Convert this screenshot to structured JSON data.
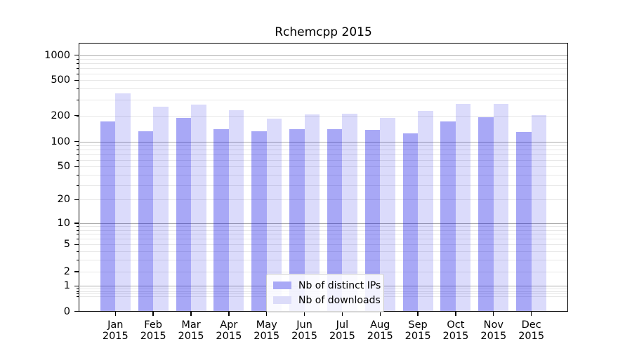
{
  "title": "Rchemcpp 2015",
  "legend": {
    "items": [
      {
        "label": "Nb of distinct IPs"
      },
      {
        "label": "Nb of downloads"
      }
    ]
  },
  "y_axis": {
    "tick_values": [
      0,
      1,
      2,
      5,
      10,
      20,
      50,
      100,
      200,
      500,
      1000
    ],
    "tick_labels": [
      "0",
      "1",
      "2",
      "5",
      "10",
      "20",
      "50",
      "100",
      "200",
      "500",
      "1000"
    ]
  },
  "x_axis": {
    "months": [
      "Jan",
      "Feb",
      "Mar",
      "Apr",
      "May",
      "Jun",
      "Jul",
      "Aug",
      "Sep",
      "Oct",
      "Nov",
      "Dec"
    ],
    "year": "2015"
  },
  "colors": {
    "bar_ips_fill": "rgba(0,0,230,0.34)",
    "bar_downloads_fill": "rgba(0,0,230,0.14)",
    "legend_ips_swatch": "#a9a9f6",
    "legend_downloads_swatch": "#dcdcf9",
    "grid_major": "#ababab",
    "grid_minor": "#e7e7e7",
    "spine": "#000000"
  },
  "chart_data": {
    "type": "bar",
    "title": "Rchemcpp 2015",
    "categories": [
      "Jan 2015",
      "Feb 2015",
      "Mar 2015",
      "Apr 2015",
      "May 2015",
      "Jun 2015",
      "Jul 2015",
      "Aug 2015",
      "Sep 2015",
      "Oct 2015",
      "Nov 2015",
      "Dec 2015"
    ],
    "series": [
      {
        "name": "Nb of distinct IPs",
        "values": [
          172,
          130,
          188,
          138,
          131,
          139,
          140,
          135,
          125,
          172,
          190,
          128
        ]
      },
      {
        "name": "Nb of downloads",
        "values": [
          356,
          252,
          266,
          228,
          185,
          205,
          210,
          186,
          224,
          268,
          268,
          202
        ]
      }
    ],
    "xlabel": "",
    "ylabel": "",
    "yscale": "symlog",
    "ylim": [
      0,
      1400
    ],
    "yticks": [
      0,
      1,
      2,
      5,
      10,
      20,
      50,
      100,
      200,
      500,
      1000
    ],
    "grid": true,
    "legend_position": "lower center inside"
  }
}
